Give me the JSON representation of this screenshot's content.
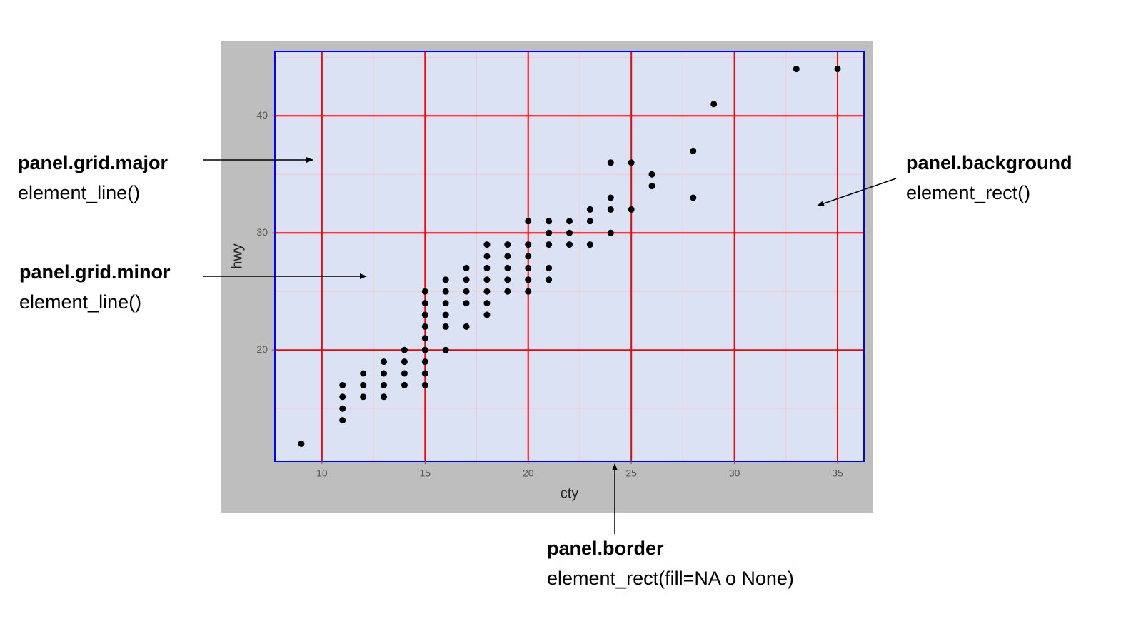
{
  "chart_data": {
    "type": "scatter",
    "xlabel": "cty",
    "ylabel": "hwy",
    "xlim": [
      7.72,
      36.28
    ],
    "ylim": [
      10.5,
      45.5
    ],
    "xticks": [
      10,
      15,
      20,
      25,
      30,
      35
    ],
    "yticks": [
      20,
      30,
      40
    ],
    "x_minor_ticks": [
      12.5,
      17.5,
      22.5,
      27.5,
      32.5
    ],
    "y_minor_ticks": [
      15,
      25,
      35,
      45
    ],
    "grid": true,
    "grid_color": "#ff0000",
    "minor_grid_color": "#f4c8d0",
    "panel_background": "#dbe2f3",
    "panel_border_color": "#0000ff",
    "plot_background": "#bebebe",
    "series": [
      {
        "color": "#000000",
        "x": [
          9,
          11,
          11,
          11,
          11,
          12,
          12,
          12,
          13,
          13,
          13,
          13,
          14,
          14,
          14,
          14,
          15,
          15,
          15,
          15,
          15,
          15,
          15,
          15,
          15,
          16,
          16,
          16,
          16,
          16,
          16,
          17,
          17,
          17,
          17,
          17,
          18,
          18,
          18,
          18,
          18,
          18,
          18,
          19,
          19,
          19,
          19,
          19,
          20,
          20,
          20,
          20,
          20,
          20,
          21,
          21,
          21,
          21,
          21,
          22,
          22,
          22,
          23,
          23,
          23,
          24,
          24,
          24,
          24,
          25,
          25,
          26,
          26,
          28,
          28,
          29,
          33,
          35
        ],
        "values": [
          12,
          17,
          16,
          15,
          14,
          18,
          17,
          16,
          19,
          18,
          17,
          16,
          20,
          19,
          18,
          17,
          25,
          24,
          23,
          22,
          21,
          20,
          19,
          18,
          17,
          26,
          25,
          24,
          23,
          22,
          20,
          27,
          26,
          25,
          24,
          22,
          29,
          28,
          27,
          26,
          25,
          24,
          23,
          29,
          28,
          27,
          26,
          25,
          31,
          29,
          28,
          27,
          26,
          25,
          31,
          30,
          29,
          27,
          26,
          31,
          30,
          29,
          32,
          31,
          29,
          36,
          33,
          32,
          30,
          36,
          32,
          35,
          34,
          37,
          33,
          41,
          44,
          44
        ]
      }
    ],
    "annotations": [
      {
        "label": "panel.grid.major",
        "code": "element_line()"
      },
      {
        "label": "panel.grid.minor",
        "code": "element_line()"
      },
      {
        "label": "panel.background",
        "code": "element_rect()"
      },
      {
        "label": "panel.border",
        "code": "element_rect(fill=NA o None)"
      }
    ]
  }
}
